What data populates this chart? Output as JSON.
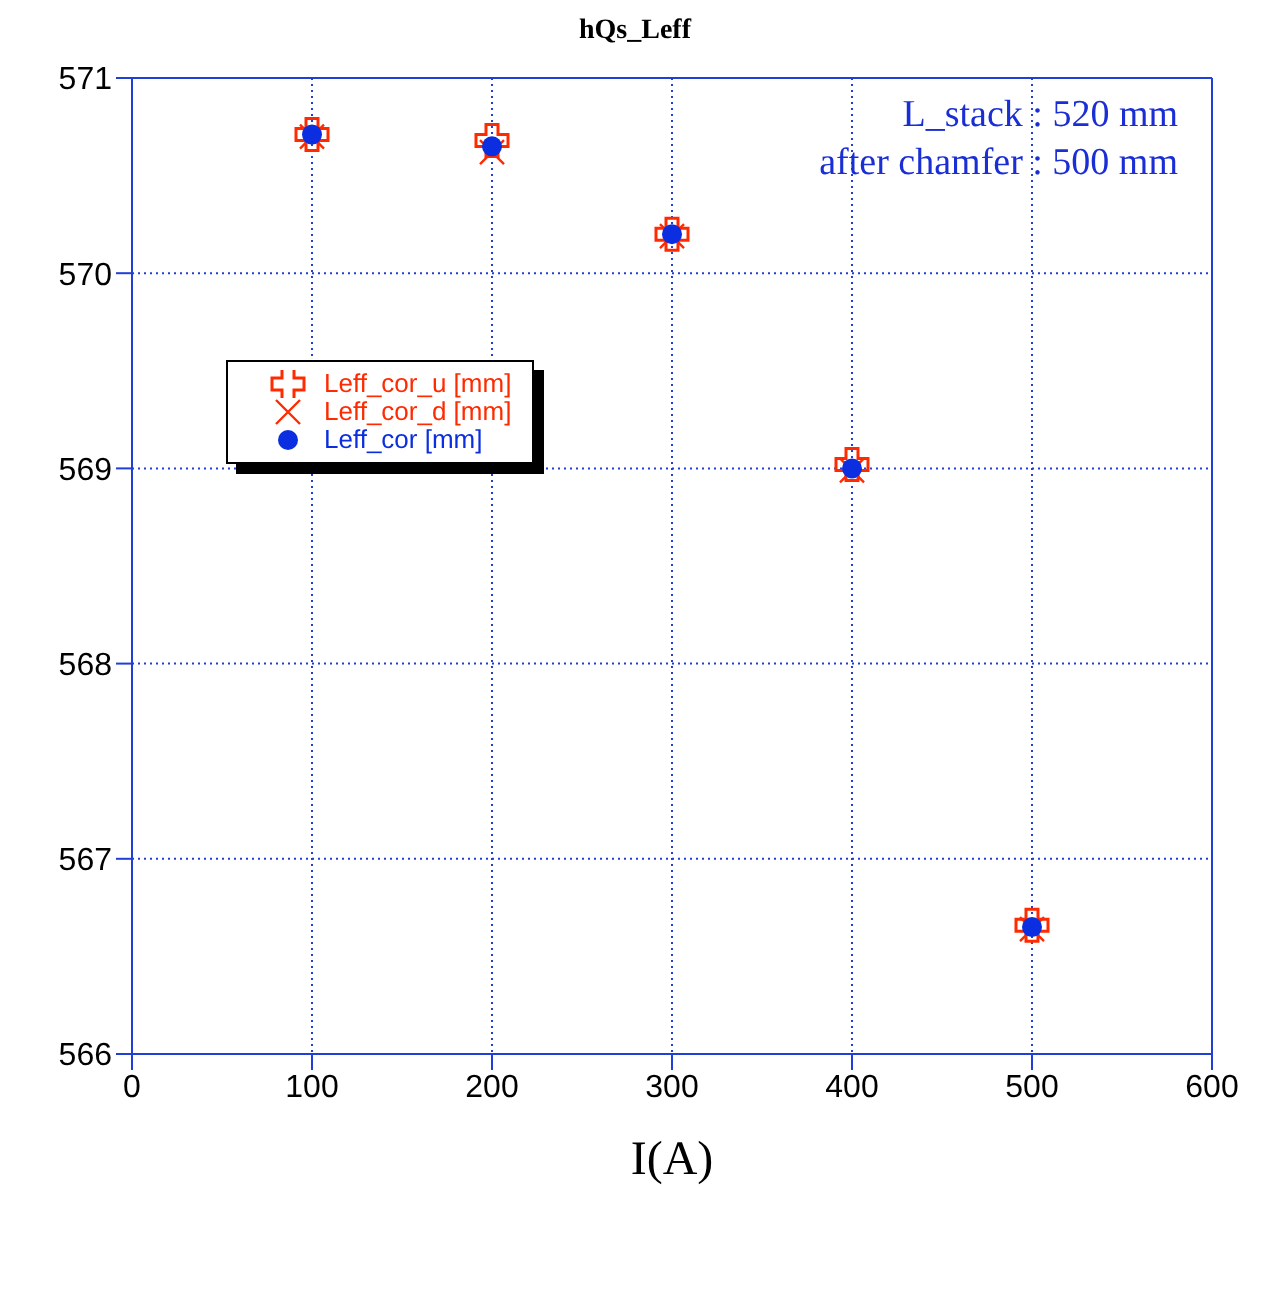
{
  "chart_data": {
    "type": "scatter",
    "title": "hQs_Leff",
    "xlabel": "I(A)",
    "x": [
      100,
      200,
      300,
      400,
      500
    ],
    "series": [
      {
        "name": "Leff_cor_u [mm]",
        "color": "#ff2a00",
        "marker": "cross",
        "values": [
          570.71,
          570.68,
          570.2,
          569.02,
          566.66
        ]
      },
      {
        "name": "Leff_cor_d [mm]",
        "color": "#ff2a00",
        "marker": "x",
        "values": [
          570.7,
          570.62,
          570.19,
          568.99,
          566.64
        ]
      },
      {
        "name": "Leff_cor [mm]",
        "color": "#0a2ee0",
        "marker": "circle",
        "values": [
          570.71,
          570.65,
          570.2,
          569.0,
          566.65
        ]
      }
    ],
    "xlim": [
      0,
      600
    ],
    "xticks": [
      0,
      100,
      200,
      300,
      400,
      500,
      600
    ],
    "ylim": [
      566,
      571
    ],
    "yticks": [
      566,
      567,
      568,
      569,
      570,
      571
    ],
    "grid": true,
    "legend": "top left",
    "annotations": [
      "L_stack : 520 mm",
      "after chamfer : 500 mm"
    ]
  }
}
